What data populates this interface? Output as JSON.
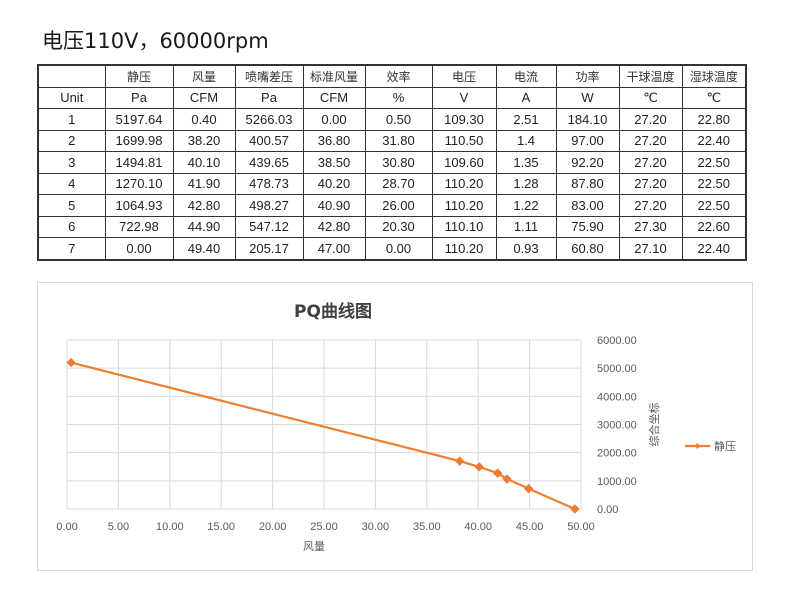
{
  "page_title": "电压110V，60000rpm",
  "table": {
    "header_cn": [
      "",
      "静压",
      "风量",
      "喷嘴差压",
      "标准风量",
      "效率",
      "电压",
      "电流",
      "功率",
      "干球温度",
      "湿球温度"
    ],
    "header_units": [
      "Unit",
      "Pa",
      "CFM",
      "Pa",
      "CFM",
      "%",
      "V",
      "A",
      "W",
      "℃",
      "℃"
    ],
    "rows": [
      [
        "1",
        "5197.64",
        "0.40",
        "5266.03",
        "0.00",
        "0.50",
        "109.30",
        "2.51",
        "184.10",
        "27.20",
        "22.80"
      ],
      [
        "2",
        "1699.98",
        "38.20",
        "400.57",
        "36.80",
        "31.80",
        "110.50",
        "1.4",
        "97.00",
        "27.20",
        "22.40"
      ],
      [
        "3",
        "1494.81",
        "40.10",
        "439.65",
        "38.50",
        "30.80",
        "109.60",
        "1.35",
        "92.20",
        "27.20",
        "22.50"
      ],
      [
        "4",
        "1270.10",
        "41.90",
        "478.73",
        "40.20",
        "28.70",
        "110.20",
        "1.28",
        "87.80",
        "27.20",
        "22.50"
      ],
      [
        "5",
        "1064.93",
        "42.80",
        "498.27",
        "40.90",
        "26.00",
        "110.20",
        "1.22",
        "83.00",
        "27.20",
        "22.50"
      ],
      [
        "6",
        "722.98",
        "44.90",
        "547.12",
        "42.80",
        "20.30",
        "110.10",
        "1.11",
        "75.90",
        "27.30",
        "22.60"
      ],
      [
        "7",
        "0.00",
        "49.40",
        "205.17",
        "47.00",
        "0.00",
        "110.20",
        "0.93",
        "60.80",
        "27.10",
        "22.40"
      ]
    ]
  },
  "chart": {
    "title": "PQ曲线图",
    "xlabel": "风量",
    "ylabel": "综合坐标",
    "legend": "静压",
    "series_color": "#ed7d31",
    "x_ticks": [
      "0.00",
      "5.00",
      "10.00",
      "15.00",
      "20.00",
      "25.00",
      "30.00",
      "35.00",
      "40.00",
      "45.00",
      "50.00"
    ],
    "y_ticks": [
      "6000.00",
      "5000.00",
      "4000.00",
      "3000.00",
      "2000.00",
      "1000.00",
      "0.00"
    ]
  },
  "chart_data": {
    "type": "scatter",
    "title": "PQ曲线图",
    "xlabel": "风量",
    "ylabel": "综合坐标",
    "series": [
      {
        "name": "静压",
        "x": [
          0.4,
          38.2,
          40.1,
          41.9,
          42.8,
          44.9,
          49.4
        ],
        "y": [
          5197.64,
          1699.98,
          1494.81,
          1270.1,
          1064.93,
          722.98,
          0.0
        ]
      }
    ],
    "xlim": [
      0,
      50
    ],
    "ylim": [
      0,
      6000
    ],
    "x_ticks": [
      0,
      5,
      10,
      15,
      20,
      25,
      30,
      35,
      40,
      45,
      50
    ],
    "y_ticks": [
      0,
      1000,
      2000,
      3000,
      4000,
      5000,
      6000
    ],
    "y_axis_position": "right",
    "grid": true,
    "legend_position": "right",
    "line_with_markers": true,
    "marker": "diamond"
  }
}
